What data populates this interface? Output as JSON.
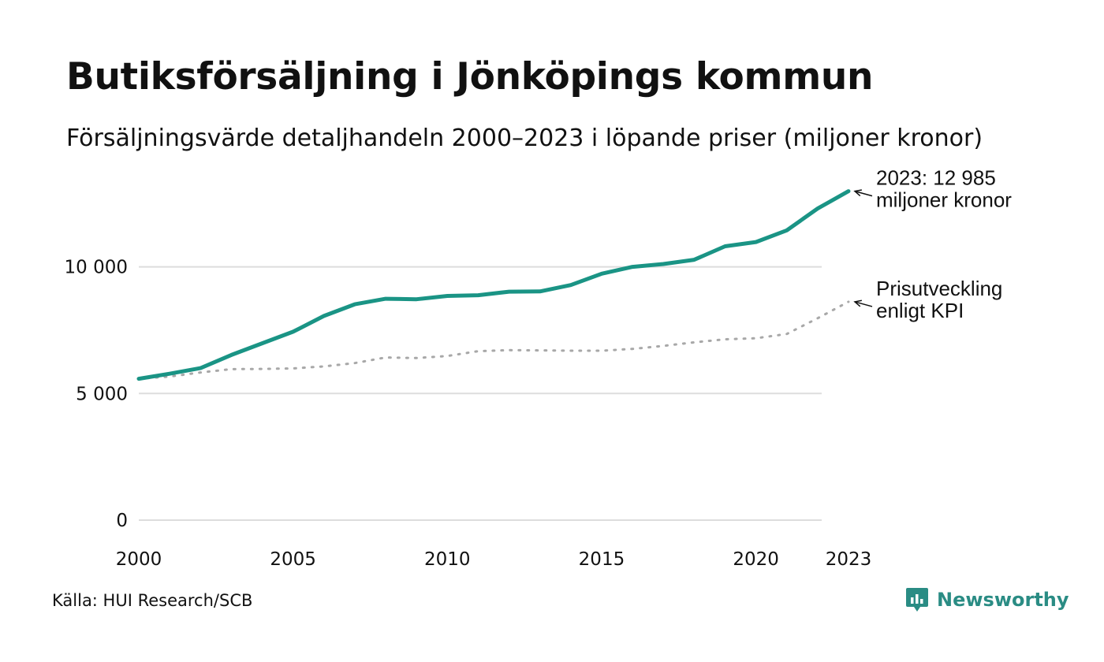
{
  "title": "Butiksförsäljning i Jönköpings kommun",
  "subtitle": "Försäljningsvärde detaljhandeln 2000–2023 i löpande priser (miljoner kronor)",
  "source": "Källa: HUI Research/SCB",
  "brand": {
    "name": "Newsworthy",
    "color": "#2a8c84"
  },
  "colors": {
    "sales": "#1a9485",
    "kpi": "#a8a8a8",
    "grid": "#dddddd"
  },
  "chart_data": {
    "type": "line",
    "x": [
      2000,
      2001,
      2002,
      2003,
      2004,
      2005,
      2006,
      2007,
      2008,
      2009,
      2010,
      2011,
      2012,
      2013,
      2014,
      2015,
      2016,
      2017,
      2018,
      2019,
      2020,
      2021,
      2022,
      2023
    ],
    "series": [
      {
        "name": "Försäljningsvärde",
        "style": "solid",
        "values": [
          5580,
          5780,
          6000,
          6520,
          6980,
          7440,
          8060,
          8520,
          8740,
          8720,
          8850,
          8880,
          9020,
          9030,
          9280,
          9730,
          10000,
          10110,
          10280,
          10810,
          10980,
          11440,
          12300,
          12985
        ]
      },
      {
        "name": "Prisutveckling enligt KPI",
        "style": "dotted",
        "values": [
          5580,
          5670,
          5830,
          5960,
          5970,
          5990,
          6070,
          6200,
          6420,
          6400,
          6480,
          6670,
          6710,
          6700,
          6690,
          6690,
          6760,
          6880,
          7020,
          7140,
          7180,
          7350,
          7970,
          8620
        ]
      }
    ],
    "x_ticks": [
      "2000",
      "2005",
      "2010",
      "2015",
      "2020",
      "2023"
    ],
    "y_ticks": [
      {
        "value": 0,
        "label": "0"
      },
      {
        "value": 5000,
        "label": "5 000"
      },
      {
        "value": 10000,
        "label": "10 000"
      }
    ],
    "ylim": [
      0,
      14000
    ],
    "xlim": [
      2000,
      2023
    ],
    "annotations": {
      "sales": [
        "2023: 12 985",
        "miljoner kronor"
      ],
      "kpi": [
        "Prisutveckling",
        "enligt KPI"
      ]
    },
    "xlabel": "",
    "ylabel": "",
    "grid": true
  }
}
